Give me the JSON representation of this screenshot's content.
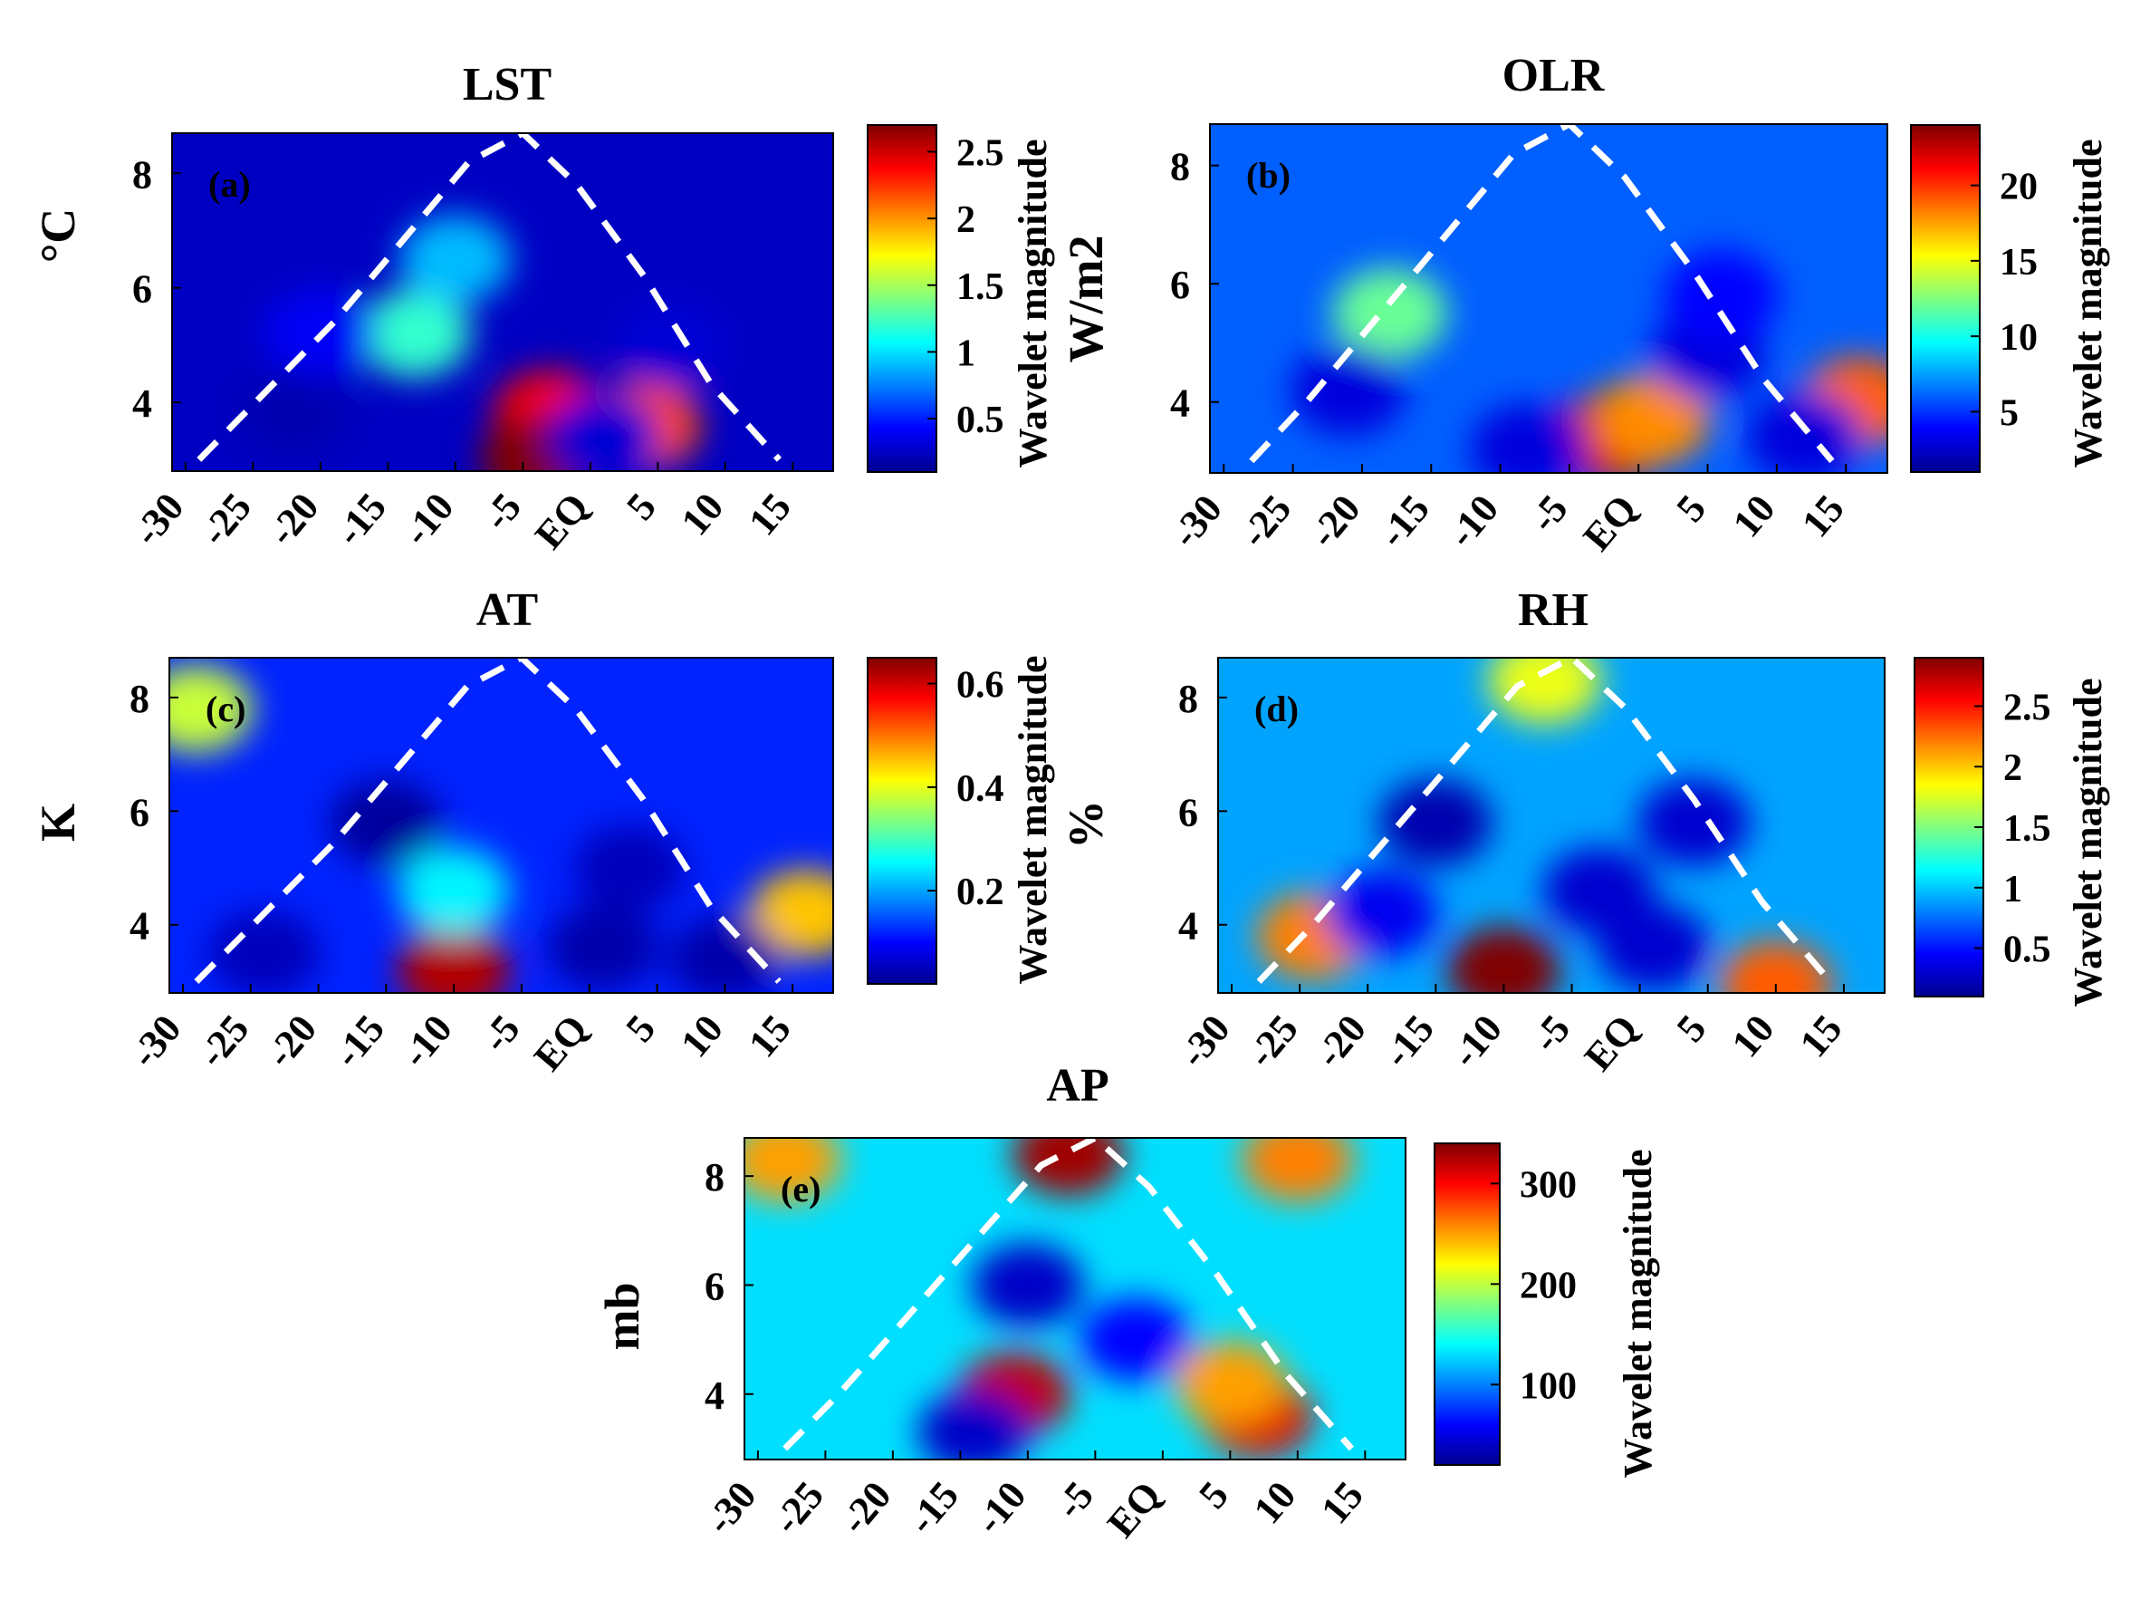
{
  "figure": {
    "colorbar_label": "Wavelet magnitude",
    "colormap": [
      "#00008f",
      "#0000ff",
      "#0080ff",
      "#00ffff",
      "#80ff80",
      "#ffff00",
      "#ff8000",
      "#ff0000",
      "#800000"
    ],
    "dashed_line_color": "#ffffff"
  },
  "chart_data": [
    {
      "type": "heatmap",
      "panel_id": "a",
      "panel_label": "(a)",
      "title": "LST",
      "ylabel": "°C",
      "xlabel": "",
      "x_tick_labels": [
        "-30",
        "-25",
        "-20",
        "-15",
        "-10",
        "-5",
        "EQ",
        "5",
        "10",
        "15"
      ],
      "x_tick_values": [
        -30,
        -25,
        -20,
        -15,
        -10,
        -5,
        0,
        5,
        10,
        15
      ],
      "xlim": [
        -31,
        18
      ],
      "y_ticks": [
        4,
        6,
        8
      ],
      "ylim": [
        2.8,
        8.7
      ],
      "colorbar": {
        "min": 0.1,
        "max": 2.7,
        "ticks": [
          0.5,
          1,
          1.5,
          2,
          2.5
        ],
        "tick_labels": [
          "0.5",
          "1",
          "1.5",
          "2",
          "2.5"
        ]
      },
      "background_value": 0.25,
      "cone_of_influence": {
        "x": [
          -29,
          -24,
          -19,
          -14,
          -9,
          -5,
          -1,
          4,
          9,
          14
        ],
        "y": [
          3,
          4.2,
          5.4,
          6.8,
          8.2,
          8.7,
          7.8,
          6.2,
          4.3,
          3
        ]
      },
      "hotspots": [
        {
          "x": -3,
          "y": 3.8,
          "value": 2.4
        },
        {
          "x": 4,
          "y": 3.6,
          "value": 2.2
        },
        {
          "x": -4,
          "y": 3.0,
          "value": 2.7
        },
        {
          "x": 1,
          "y": 3.4,
          "value": 0.3
        },
        {
          "x": -13,
          "y": 5.2,
          "value": 1.2
        },
        {
          "x": -20,
          "y": 5.2,
          "value": 0.4
        },
        {
          "x": -22,
          "y": 3.8,
          "value": 0.2
        },
        {
          "x": 6,
          "y": 5.0,
          "value": 0.3
        },
        {
          "x": -10,
          "y": 6.5,
          "value": 0.9
        }
      ]
    },
    {
      "type": "heatmap",
      "panel_id": "b",
      "panel_label": "(b)",
      "title": "OLR",
      "ylabel": "W/m2",
      "xlabel": "",
      "x_tick_labels": [
        "-30",
        "-25",
        "-20",
        "-15",
        "-10",
        "-5",
        "EQ",
        "5",
        "10",
        "15"
      ],
      "x_tick_values": [
        -30,
        -25,
        -20,
        -15,
        -10,
        -5,
        0,
        5,
        10,
        15
      ],
      "xlim": [
        -31,
        18
      ],
      "y_ticks": [
        4,
        6,
        8
      ],
      "ylim": [
        2.8,
        8.7
      ],
      "colorbar": {
        "min": 1,
        "max": 24,
        "ticks": [
          5,
          10,
          15,
          20
        ],
        "tick_labels": [
          "5",
          "10",
          "15",
          "20"
        ]
      },
      "background_value": 6,
      "cone_of_influence": {
        "x": [
          -28,
          -24,
          -19,
          -14,
          -9,
          -5,
          -1,
          4,
          9,
          14
        ],
        "y": [
          3,
          4.0,
          5.4,
          6.8,
          8.2,
          8.7,
          7.8,
          6.2,
          4.4,
          3
        ]
      },
      "hotspots": [
        {
          "x": -2,
          "y": 3.4,
          "value": 22
        },
        {
          "x": 1,
          "y": 3.7,
          "value": 18
        },
        {
          "x": 16,
          "y": 4.0,
          "value": 19
        },
        {
          "x": -18,
          "y": 5.5,
          "value": 12
        },
        {
          "x": -21,
          "y": 4.2,
          "value": 3
        },
        {
          "x": 5,
          "y": 4.8,
          "value": 3
        },
        {
          "x": 6,
          "y": 5.8,
          "value": 4
        },
        {
          "x": -8,
          "y": 3.2,
          "value": 3
        },
        {
          "x": 12,
          "y": 3.4,
          "value": 3
        }
      ]
    },
    {
      "type": "heatmap",
      "panel_id": "c",
      "panel_label": "(c)",
      "title": "AT",
      "ylabel": "K",
      "xlabel": "",
      "x_tick_labels": [
        "-30",
        "-25",
        "-20",
        "-15",
        "-10",
        "-5",
        "EQ",
        "5",
        "10",
        "15"
      ],
      "x_tick_values": [
        -30,
        -25,
        -20,
        -15,
        -10,
        -5,
        0,
        5,
        10,
        15
      ],
      "xlim": [
        -31,
        18
      ],
      "y_ticks": [
        4,
        6,
        8
      ],
      "ylim": [
        2.8,
        8.7
      ],
      "colorbar": {
        "min": 0.02,
        "max": 0.65,
        "ticks": [
          0.2,
          0.4,
          0.6
        ],
        "tick_labels": [
          "0.2",
          "0.4",
          "0.6"
        ]
      },
      "background_value": 0.12,
      "cone_of_influence": {
        "x": [
          -29,
          -24,
          -19,
          -14,
          -9,
          -5,
          -1,
          4,
          9,
          14
        ],
        "y": [
          3,
          4.2,
          5.4,
          6.8,
          8.2,
          8.7,
          7.8,
          6.2,
          4.3,
          3
        ]
      },
      "hotspots": [
        {
          "x": -10,
          "y": 3.2,
          "value": 0.62
        },
        {
          "x": 16,
          "y": 4.2,
          "value": 0.45
        },
        {
          "x": -29,
          "y": 7.8,
          "value": 0.38
        },
        {
          "x": -10,
          "y": 4.6,
          "value": 0.25
        },
        {
          "x": -15,
          "y": 5.8,
          "value": 0.03
        },
        {
          "x": 1,
          "y": 3.6,
          "value": 0.04
        },
        {
          "x": -24,
          "y": 3.5,
          "value": 0.05
        },
        {
          "x": 3,
          "y": 5.0,
          "value": 0.05
        },
        {
          "x": 10,
          "y": 3.4,
          "value": 0.04
        }
      ]
    },
    {
      "type": "heatmap",
      "panel_id": "d",
      "panel_label": "(d)",
      "title": "RH",
      "ylabel": "%",
      "xlabel": "",
      "x_tick_labels": [
        "-30",
        "-25",
        "-20",
        "-15",
        "-10",
        "-5",
        "EQ",
        "5",
        "10",
        "15"
      ],
      "x_tick_values": [
        -30,
        -25,
        -20,
        -15,
        -10,
        -5,
        0,
        5,
        10,
        15
      ],
      "xlim": [
        -31,
        18
      ],
      "y_ticks": [
        4,
        6,
        8
      ],
      "ylim": [
        2.8,
        8.7
      ],
      "colorbar": {
        "min": 0.1,
        "max": 2.9,
        "ticks": [
          0.5,
          1,
          1.5,
          2,
          2.5
        ],
        "tick_labels": [
          "0.5",
          "1",
          "1.5",
          "2",
          "2.5"
        ]
      },
      "background_value": 0.9,
      "cone_of_influence": {
        "x": [
          -28,
          -24,
          -19,
          -14,
          -9,
          -5,
          -1,
          4,
          9,
          14
        ],
        "y": [
          3,
          4.0,
          5.4,
          6.8,
          8.2,
          8.7,
          7.8,
          6.2,
          4.4,
          3
        ]
      },
      "hotspots": [
        {
          "x": -10,
          "y": 3.2,
          "value": 2.9
        },
        {
          "x": -24,
          "y": 3.8,
          "value": 2.2
        },
        {
          "x": 10,
          "y": 2.95,
          "value": 2.3
        },
        {
          "x": -7,
          "y": 8.3,
          "value": 1.8
        },
        {
          "x": -15,
          "y": 5.8,
          "value": 0.2
        },
        {
          "x": -3,
          "y": 4.6,
          "value": 0.3
        },
        {
          "x": 4,
          "y": 5.8,
          "value": 0.3
        },
        {
          "x": -19,
          "y": 4.2,
          "value": 0.4
        },
        {
          "x": 1,
          "y": 3.6,
          "value": 0.3
        }
      ]
    },
    {
      "type": "heatmap",
      "panel_id": "e",
      "panel_label": "(e)",
      "title": "AP",
      "ylabel": "mb",
      "xlabel": "",
      "x_tick_labels": [
        "-30",
        "-25",
        "-20",
        "-15",
        "-10",
        "-5",
        "EQ",
        "5",
        "10",
        "15"
      ],
      "x_tick_values": [
        -30,
        -25,
        -20,
        -15,
        -10,
        -5,
        0,
        5,
        10,
        15
      ],
      "xlim": [
        -31,
        18
      ],
      "y_ticks": [
        4,
        6,
        8
      ],
      "ylim": [
        2.8,
        8.7
      ],
      "colorbar": {
        "min": 20,
        "max": 340,
        "ticks": [
          100,
          200,
          300
        ],
        "tick_labels": [
          "100",
          "200",
          "300"
        ]
      },
      "background_value": 130,
      "cone_of_influence": {
        "x": [
          -28,
          -24,
          -19,
          -14,
          -9,
          -5,
          -1,
          4,
          9,
          14
        ],
        "y": [
          3,
          4.0,
          5.4,
          6.8,
          8.2,
          8.7,
          7.8,
          6.2,
          4.4,
          3
        ]
      },
      "hotspots": [
        {
          "x": -7,
          "y": 8.4,
          "value": 330
        },
        {
          "x": -11,
          "y": 4.0,
          "value": 320
        },
        {
          "x": 7,
          "y": 3.6,
          "value": 310
        },
        {
          "x": 5,
          "y": 4.2,
          "value": 250
        },
        {
          "x": -28,
          "y": 8.3,
          "value": 250
        },
        {
          "x": 10,
          "y": 8.3,
          "value": 260
        },
        {
          "x": -2,
          "y": 5.0,
          "value": 60
        },
        {
          "x": -10,
          "y": 6.0,
          "value": 40
        },
        {
          "x": -14,
          "y": 3.3,
          "value": 40
        }
      ]
    }
  ]
}
